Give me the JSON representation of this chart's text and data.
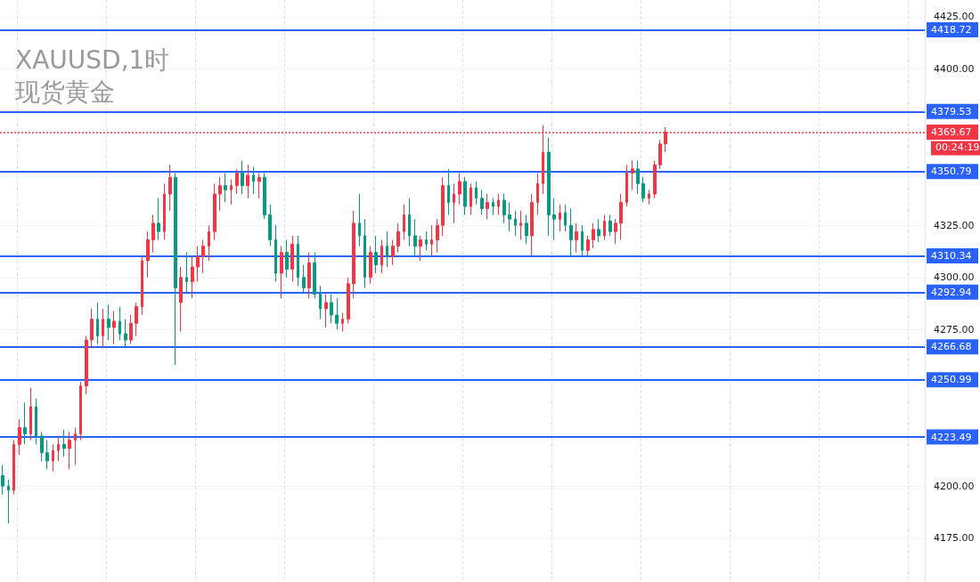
{
  "chart_data": {
    "type": "candlestick",
    "title": "XAUUSD,1时",
    "subtitle": "现货黄金",
    "categories": [
      null,
      null,
      null,
      null,
      null,
      null,
      null,
      null,
      null,
      null,
      null,
      null,
      null,
      null,
      null,
      null,
      null,
      null,
      null,
      null,
      null,
      null,
      null,
      null,
      null,
      null,
      null,
      null,
      null,
      null,
      null,
      null,
      null,
      null,
      null,
      null,
      null,
      null,
      null,
      null,
      null,
      null,
      null,
      null,
      null,
      null,
      null,
      null,
      null,
      null,
      null,
      null,
      null,
      null,
      null,
      null,
      null,
      null,
      null,
      null,
      null,
      null,
      null,
      null,
      null,
      null,
      null,
      null,
      null,
      null,
      null,
      null,
      null,
      null,
      null,
      null,
      null,
      null,
      null,
      null,
      null,
      null,
      null,
      null,
      null,
      null,
      null,
      null,
      null,
      null,
      null,
      null,
      null,
      null,
      null,
      null,
      null,
      null,
      null,
      null,
      null,
      null,
      null,
      null,
      null,
      null,
      null,
      null,
      null,
      null,
      null,
      null,
      null,
      null,
      null,
      null,
      null,
      null,
      null,
      null,
      null,
      null,
      null,
      null,
      null,
      null,
      null,
      null,
      null,
      null,
      null,
      null,
      null,
      null,
      null,
      null,
      null,
      null,
      null,
      null,
      null,
      null,
      null,
      null,
      null,
      null,
      null,
      null,
      null,
      null,
      null,
      null,
      null,
      null,
      null,
      null,
      null,
      null,
      null,
      null,
      null,
      null,
      null,
      null,
      null,
      null
    ],
    "ohlc": [
      [
        4205,
        4210,
        4196,
        4200
      ],
      [
        4200,
        4203,
        4182,
        4198
      ],
      [
        4198,
        4222,
        4196,
        4220
      ],
      [
        4220,
        4232,
        4215,
        4228
      ],
      [
        4228,
        4240,
        4220,
        4225
      ],
      [
        4225,
        4247,
        4222,
        4238
      ],
      [
        4238,
        4242,
        4220,
        4224
      ],
      [
        4224,
        4226,
        4212,
        4216
      ],
      [
        4216,
        4222,
        4208,
        4212
      ],
      [
        4212,
        4220,
        4207,
        4217
      ],
      [
        4217,
        4224,
        4212,
        4220
      ],
      [
        4220,
        4227,
        4214,
        4218
      ],
      [
        4218,
        4226,
        4208,
        4222
      ],
      [
        4222,
        4228,
        4210,
        4225
      ],
      [
        4225,
        4250,
        4222,
        4248
      ],
      [
        4248,
        4272,
        4244,
        4270
      ],
      [
        4270,
        4285,
        4266,
        4280
      ],
      [
        4280,
        4288,
        4268,
        4272
      ],
      [
        4272,
        4285,
        4266,
        4280
      ],
      [
        4280,
        4287,
        4270,
        4276
      ],
      [
        4276,
        4284,
        4268,
        4279
      ],
      [
        4279,
        4286,
        4270,
        4273
      ],
      [
        4273,
        4280,
        4266,
        4270
      ],
      [
        4270,
        4282,
        4268,
        4278
      ],
      [
        4278,
        4288,
        4272,
        4286
      ],
      [
        4286,
        4310,
        4282,
        4308
      ],
      [
        4308,
        4322,
        4300,
        4318
      ],
      [
        4318,
        4330,
        4312,
        4326
      ],
      [
        4326,
        4338,
        4318,
        4322
      ],
      [
        4322,
        4345,
        4318,
        4340
      ],
      [
        4340,
        4354,
        4332,
        4348
      ],
      [
        4348,
        4350,
        4258,
        4295
      ],
      [
        4288,
        4305,
        4274,
        4300
      ],
      [
        4300,
        4312,
        4292,
        4298
      ],
      [
        4298,
        4310,
        4290,
        4305
      ],
      [
        4305,
        4315,
        4298,
        4310
      ],
      [
        4310,
        4318,
        4302,
        4315
      ],
      [
        4315,
        4325,
        4308,
        4322
      ],
      [
        4322,
        4345,
        4318,
        4340
      ],
      [
        4340,
        4348,
        4332,
        4344
      ],
      [
        4344,
        4350,
        4336,
        4342
      ],
      [
        4342,
        4347,
        4335,
        4344
      ],
      [
        4344,
        4352,
        4340,
        4350
      ],
      [
        4350,
        4356,
        4340,
        4344
      ],
      [
        4344,
        4354,
        4338,
        4349
      ],
      [
        4349,
        4353,
        4340,
        4346
      ],
      [
        4346,
        4350,
        4338,
        4348
      ],
      [
        4348,
        4350,
        4328,
        4330
      ],
      [
        4330,
        4335,
        4315,
        4318
      ],
      [
        4318,
        4325,
        4298,
        4302
      ],
      [
        4302,
        4315,
        4290,
        4312
      ],
      [
        4312,
        4318,
        4300,
        4304
      ],
      [
        4304,
        4320,
        4298,
        4316
      ],
      [
        4316,
        4320,
        4296,
        4300
      ],
      [
        4300,
        4306,
        4292,
        4295
      ],
      [
        4295,
        4312,
        4290,
        4307
      ],
      [
        4307,
        4312,
        4290,
        4292
      ],
      [
        4292,
        4296,
        4280,
        4285
      ],
      [
        4285,
        4292,
        4276,
        4288
      ],
      [
        4288,
        4292,
        4278,
        4282
      ],
      [
        4282,
        4290,
        4275,
        4278
      ],
      [
        4278,
        4283,
        4274,
        4280
      ],
      [
        4280,
        4300,
        4278,
        4297
      ],
      [
        4297,
        4332,
        4290,
        4326
      ],
      [
        4326,
        4340,
        4315,
        4320
      ],
      [
        4320,
        4328,
        4295,
        4300
      ],
      [
        4300,
        4315,
        4297,
        4312
      ],
      [
        4312,
        4320,
        4302,
        4306
      ],
      [
        4306,
        4318,
        4302,
        4315
      ],
      [
        4315,
        4322,
        4305,
        4310
      ],
      [
        4310,
        4318,
        4306,
        4315
      ],
      [
        4315,
        4326,
        4312,
        4322
      ],
      [
        4322,
        4335,
        4318,
        4330
      ],
      [
        4330,
        4338,
        4315,
        4320
      ],
      [
        4320,
        4328,
        4310,
        4315
      ],
      [
        4315,
        4320,
        4308,
        4318
      ],
      [
        4318,
        4322,
        4313,
        4316
      ],
      [
        4316,
        4325,
        4310,
        4318
      ],
      [
        4318,
        4328,
        4312,
        4325
      ],
      [
        4325,
        4348,
        4320,
        4344
      ],
      [
        4344,
        4352,
        4330,
        4336
      ],
      [
        4336,
        4345,
        4326,
        4340
      ],
      [
        4340,
        4350,
        4335,
        4346
      ],
      [
        4346,
        4348,
        4330,
        4334
      ],
      [
        4334,
        4345,
        4330,
        4343
      ],
      [
        4343,
        4346,
        4335,
        4338
      ],
      [
        4338,
        4342,
        4330,
        4333
      ],
      [
        4333,
        4340,
        4328,
        4336
      ],
      [
        4336,
        4338,
        4330,
        4334
      ],
      [
        4334,
        4340,
        4330,
        4337
      ],
      [
        4337,
        4340,
        4326,
        4330
      ],
      [
        4330,
        4336,
        4322,
        4328
      ],
      [
        4328,
        4332,
        4320,
        4325
      ],
      [
        4325,
        4332,
        4318,
        4326
      ],
      [
        4326,
        4330,
        4316,
        4320
      ],
      [
        4320,
        4340,
        4310,
        4336
      ],
      [
        4336,
        4350,
        4330,
        4345
      ],
      [
        4345,
        4373,
        4340,
        4360
      ],
      [
        4360,
        4367,
        4320,
        4330
      ],
      [
        4330,
        4338,
        4318,
        4328
      ],
      [
        4328,
        4335,
        4322,
        4331
      ],
      [
        4331,
        4335,
        4322,
        4325
      ],
      [
        4325,
        4333,
        4310,
        4318
      ],
      [
        4318,
        4326,
        4312,
        4322
      ],
      [
        4322,
        4325,
        4310,
        4313
      ],
      [
        4313,
        4320,
        4310,
        4318
      ],
      [
        4318,
        4326,
        4314,
        4323
      ],
      [
        4323,
        4328,
        4317,
        4320
      ],
      [
        4320,
        4330,
        4318,
        4327
      ],
      [
        4327,
        4330,
        4320,
        4322
      ],
      [
        4322,
        4328,
        4316,
        4326
      ],
      [
        4326,
        4340,
        4318,
        4336
      ],
      [
        4336,
        4354,
        4334,
        4350
      ],
      [
        4350,
        4356,
        4342,
        4352
      ],
      [
        4352,
        4356,
        4340,
        4345
      ],
      [
        4345,
        4348,
        4336,
        4338
      ],
      [
        4338,
        4342,
        4335,
        4340
      ],
      [
        4340,
        4356,
        4338,
        4354
      ],
      [
        4354,
        4366,
        4352,
        4364
      ],
      [
        4364,
        4372,
        4360,
        4369.67
      ],
      null,
      null,
      null,
      null,
      null,
      null,
      null,
      null,
      null,
      null,
      null,
      null,
      null,
      null,
      null,
      null,
      null,
      null,
      null,
      null,
      null,
      null,
      null,
      null,
      null,
      null,
      null,
      null,
      null,
      null,
      null,
      null,
      null,
      null,
      null,
      null,
      null,
      null,
      null,
      null,
      null,
      null,
      null,
      null,
      null,
      null
    ],
    "colors": [
      "#089981",
      "#089981",
      "#f23645",
      "#f23645",
      "#089981",
      "#f23645",
      "#089981",
      "#089981",
      "#089981",
      "#f23645",
      "#f23645",
      "#089981",
      "#f23645",
      "#f23645",
      "#f23645",
      "#f23645",
      "#f23645",
      "#089981",
      "#f23645",
      "#089981",
      "#f23645",
      "#089981",
      "#089981",
      "#f23645",
      "#f23645",
      "#f23645",
      "#f23645",
      "#f23645",
      "#089981",
      "#f23645",
      "#f23645",
      "#089981",
      "#f23645",
      "#089981",
      "#f23645",
      "#f23645",
      "#f23645",
      "#f23645",
      "#f23645",
      "#f23645",
      "#089981",
      "#f23645",
      "#f23645",
      "#089981",
      "#f23645",
      "#089981",
      "#f23645",
      "#089981",
      "#089981",
      "#089981",
      "#f23645",
      "#089981",
      "#f23645",
      "#089981",
      "#089981",
      "#f23645",
      "#089981",
      "#089981",
      "#f23645",
      "#089981",
      "#089981",
      "#f23645",
      "#f23645",
      "#f23645",
      "#089981",
      "#089981",
      "#f23645",
      "#089981",
      "#f23645",
      "#089981",
      "#f23645",
      "#f23645",
      "#f23645",
      "#089981",
      "#089981",
      "#f23645",
      "#089981",
      "#f23645",
      "#f23645",
      "#f23645",
      "#089981",
      "#f23645",
      "#f23645",
      "#089981",
      "#f23645",
      "#089981",
      "#089981",
      "#f23645",
      "#089981",
      "#f23645",
      "#089981",
      "#089981",
      "#089981",
      "#f23645",
      "#089981",
      "#f23645",
      "#f23645",
      "#f23645",
      "#089981",
      "#089981",
      "#f23645",
      "#089981",
      "#089981",
      "#f23645",
      "#089981",
      "#f23645",
      "#f23645",
      "#089981",
      "#f23645",
      "#089981",
      "#f23645",
      "#f23645",
      "#f23645",
      "#f23645",
      "#089981",
      "#089981",
      "#f23645",
      "#f23645",
      "#f23645",
      "#f23645",
      null,
      null,
      null,
      null,
      null,
      null,
      null,
      null,
      null,
      null,
      null,
      null,
      null,
      null,
      null,
      null,
      null,
      null,
      null,
      null,
      null,
      null,
      null,
      null,
      null,
      null,
      null,
      null,
      null,
      null,
      null,
      null,
      null,
      null,
      null,
      null,
      null,
      null,
      null,
      null,
      null,
      null,
      null,
      null,
      null,
      null
    ],
    "ylim": [
      4154,
      4433
    ],
    "yticks": [
      {
        "value": 4175,
        "label": "4175.00"
      },
      {
        "value": 4200,
        "label": "4200.00"
      },
      {
        "value": 4275,
        "label": "4275.00"
      },
      {
        "value": 4300,
        "label": "4300.00"
      },
      {
        "value": 4325,
        "label": "4325.00"
      },
      {
        "value": 4400,
        "label": "4400.00"
      },
      {
        "value": 4425,
        "label": "4425.00"
      }
    ],
    "tick_labels": "y",
    "grid": true,
    "ref_lines": [
      {
        "axis": "y",
        "value": 4418.72,
        "label": "4418.72",
        "color": "#2962ff",
        "line_style": "solid"
      },
      {
        "axis": "y",
        "value": 4379.53,
        "label": "4379.53",
        "color": "#2962ff",
        "line_style": "solid"
      },
      {
        "axis": "y",
        "value": 4350.79,
        "label": "4350.79",
        "color": "#2962ff",
        "line_style": "solid"
      },
      {
        "axis": "y",
        "value": 4310.34,
        "label": "4310.34",
        "color": "#2962ff",
        "line_style": "solid"
      },
      {
        "axis": "y",
        "value": 4292.94,
        "label": "4292.94",
        "color": "#2962ff",
        "line_style": "solid"
      },
      {
        "axis": "y",
        "value": 4266.68,
        "label": "4266.68",
        "color": "#2962ff",
        "line_style": "solid"
      },
      {
        "axis": "y",
        "value": 4250.99,
        "label": "4250.99",
        "color": "#2962ff",
        "line_style": "solid"
      },
      {
        "axis": "y",
        "value": 4223.49,
        "label": "4223.49",
        "color": "#2962ff",
        "line_style": "solid"
      },
      {
        "axis": "y",
        "value": 4369.67,
        "label": "4369.67",
        "color": "#f23645",
        "line_style": "dotted"
      }
    ],
    "annotations": [
      "00:24:19"
    ]
  }
}
